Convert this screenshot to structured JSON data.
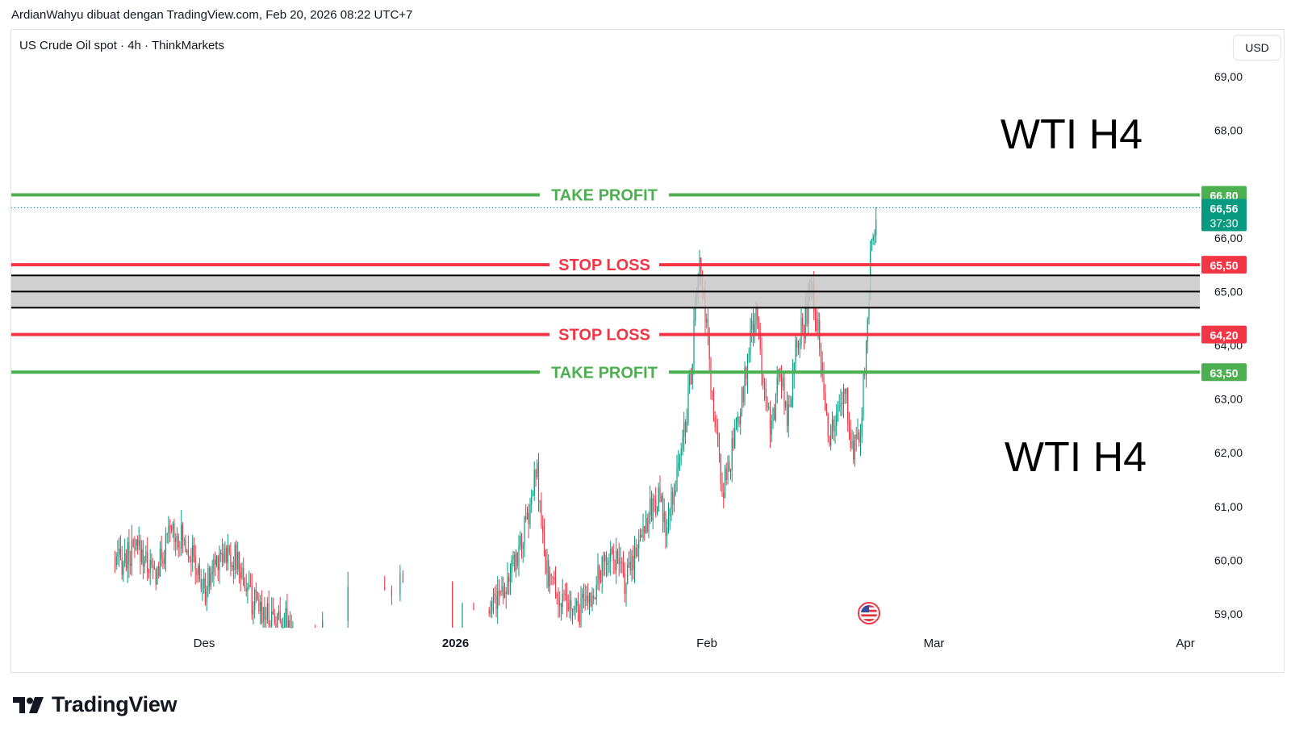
{
  "caption": "ArdianWahyu dibuat dengan TradingView.com, Feb 20, 2026 08:22 UTC+7",
  "symbol_info": "US Crude Oil spot · 4h · ThinkMarkets",
  "currency_button": "USD",
  "brand_name": "TradingView",
  "icons": {
    "brand": "tradingview-logo-icon",
    "flag": "us-flag-icon"
  },
  "colors": {
    "take_profit": "#4caf50",
    "stop_loss": "#f23645",
    "price_teal": "#089981",
    "candle_up": "#089981",
    "candle_down": "#f23645",
    "zone_fill": "#c8c8c8"
  },
  "chart_data": {
    "type": "candlestick",
    "instrument": "US Crude Oil spot",
    "timeframe": "4h",
    "ylim": [
      58.75,
      69.5
    ],
    "y_ticks": [
      "69,00",
      "68,00",
      "66,00",
      "65,00",
      "64,00",
      "63,00",
      "62,00",
      "61,00",
      "60,00",
      "59,00"
    ],
    "y_tick_values": [
      69,
      68,
      66,
      65,
      64,
      63,
      62,
      61,
      60,
      59
    ],
    "x_labels": [
      {
        "label": "Des",
        "date": "2025-12-01"
      },
      {
        "label": "2026",
        "date": "2026-01-01"
      },
      {
        "label": "Feb",
        "date": "2026-02-01"
      },
      {
        "label": "Mar",
        "date": "2026-03-01"
      },
      {
        "label": "Apr",
        "date": "2026-04-01"
      }
    ],
    "xlim": [
      "2025-11-20",
      "2026-04-07"
    ],
    "price_path": [
      {
        "date": "2025-11-20",
        "value": 59.9
      },
      {
        "date": "2025-11-23",
        "value": 60.2
      },
      {
        "date": "2025-11-25",
        "value": 59.7
      },
      {
        "date": "2025-11-27",
        "value": 60.6
      },
      {
        "date": "2025-11-29",
        "value": 60.3
      },
      {
        "date": "2025-12-01",
        "value": 59.4
      },
      {
        "date": "2025-12-03",
        "value": 60.2
      },
      {
        "date": "2025-12-05",
        "value": 60.0
      },
      {
        "date": "2025-12-07",
        "value": 59.2
      },
      {
        "date": "2025-12-10",
        "value": 58.9
      },
      {
        "date": "2025-12-13",
        "value": 58.8
      },
      {
        "date": "2025-12-16",
        "value": 59.0
      },
      {
        "date": "2025-12-19",
        "value": 59.6
      },
      {
        "date": "2025-12-21",
        "value": 59.2
      },
      {
        "date": "2025-12-24",
        "value": 59.5
      },
      {
        "date": "2025-12-26",
        "value": 59.9
      },
      {
        "date": "2025-12-28",
        "value": 59.3
      },
      {
        "date": "2025-12-30",
        "value": 58.9
      },
      {
        "date": "2026-01-06",
        "value": 59.3
      },
      {
        "date": "2026-01-08",
        "value": 59.8
      },
      {
        "date": "2026-01-10",
        "value": 60.8
      },
      {
        "date": "2026-01-11",
        "value": 61.7
      },
      {
        "date": "2026-01-12",
        "value": 59.9
      },
      {
        "date": "2026-01-14",
        "value": 59.2
      },
      {
        "date": "2026-01-16",
        "value": 59.0
      },
      {
        "date": "2026-01-18",
        "value": 59.4
      },
      {
        "date": "2026-01-20",
        "value": 60.2
      },
      {
        "date": "2026-01-22",
        "value": 59.6
      },
      {
        "date": "2026-01-24",
        "value": 60.6
      },
      {
        "date": "2026-01-26",
        "value": 61.2
      },
      {
        "date": "2026-01-27",
        "value": 60.5
      },
      {
        "date": "2026-01-28",
        "value": 61.4
      },
      {
        "date": "2026-01-29",
        "value": 62.2
      },
      {
        "date": "2026-01-30",
        "value": 63.4
      },
      {
        "date": "2026-01-31",
        "value": 65.6
      },
      {
        "date": "2026-02-01",
        "value": 64.2
      },
      {
        "date": "2026-02-02",
        "value": 62.4
      },
      {
        "date": "2026-02-03",
        "value": 61.3
      },
      {
        "date": "2026-02-05",
        "value": 62.6
      },
      {
        "date": "2026-02-06",
        "value": 63.8
      },
      {
        "date": "2026-02-07",
        "value": 64.6
      },
      {
        "date": "2026-02-08",
        "value": 63.4
      },
      {
        "date": "2026-02-09",
        "value": 62.4
      },
      {
        "date": "2026-02-10",
        "value": 63.6
      },
      {
        "date": "2026-02-11",
        "value": 62.6
      },
      {
        "date": "2026-02-12",
        "value": 64.2
      },
      {
        "date": "2026-02-13",
        "value": 64.4
      },
      {
        "date": "2026-02-14",
        "value": 65.1
      },
      {
        "date": "2026-02-15",
        "value": 64.0
      },
      {
        "date": "2026-02-16",
        "value": 62.3
      },
      {
        "date": "2026-02-17",
        "value": 62.6
      },
      {
        "date": "2026-02-18",
        "value": 63.2
      },
      {
        "date": "2026-02-19",
        "value": 62.0
      },
      {
        "date": "2026-02-20",
        "value": 62.6
      },
      {
        "date": "2026-02-21",
        "value": 64.8
      },
      {
        "date": "2026-02-21",
        "value": 65.6
      },
      {
        "date": "2026-02-22",
        "value": 66.56
      }
    ],
    "levels": [
      {
        "label": "TAKE PROFIT",
        "price_label": "66,80",
        "value": 66.8,
        "kind": "take_profit"
      },
      {
        "label": "STOP LOSS",
        "price_label": "65,50",
        "value": 65.5,
        "kind": "stop_loss"
      },
      {
        "label": "STOP LOSS",
        "price_label": "64,20",
        "value": 64.2,
        "kind": "stop_loss"
      },
      {
        "label": "TAKE PROFIT",
        "price_label": "63,50",
        "value": 63.5,
        "kind": "take_profit"
      }
    ],
    "zone": {
      "top": 65.3,
      "mid": 65.0,
      "bottom": 64.7
    },
    "last_price": {
      "label": "66,56",
      "value": 66.56,
      "countdown": "37:30"
    },
    "annotations": [
      {
        "text": "WTI H4",
        "anchor": "upper"
      },
      {
        "text": "WTI H4",
        "anchor": "lower"
      }
    ],
    "grid": false
  }
}
